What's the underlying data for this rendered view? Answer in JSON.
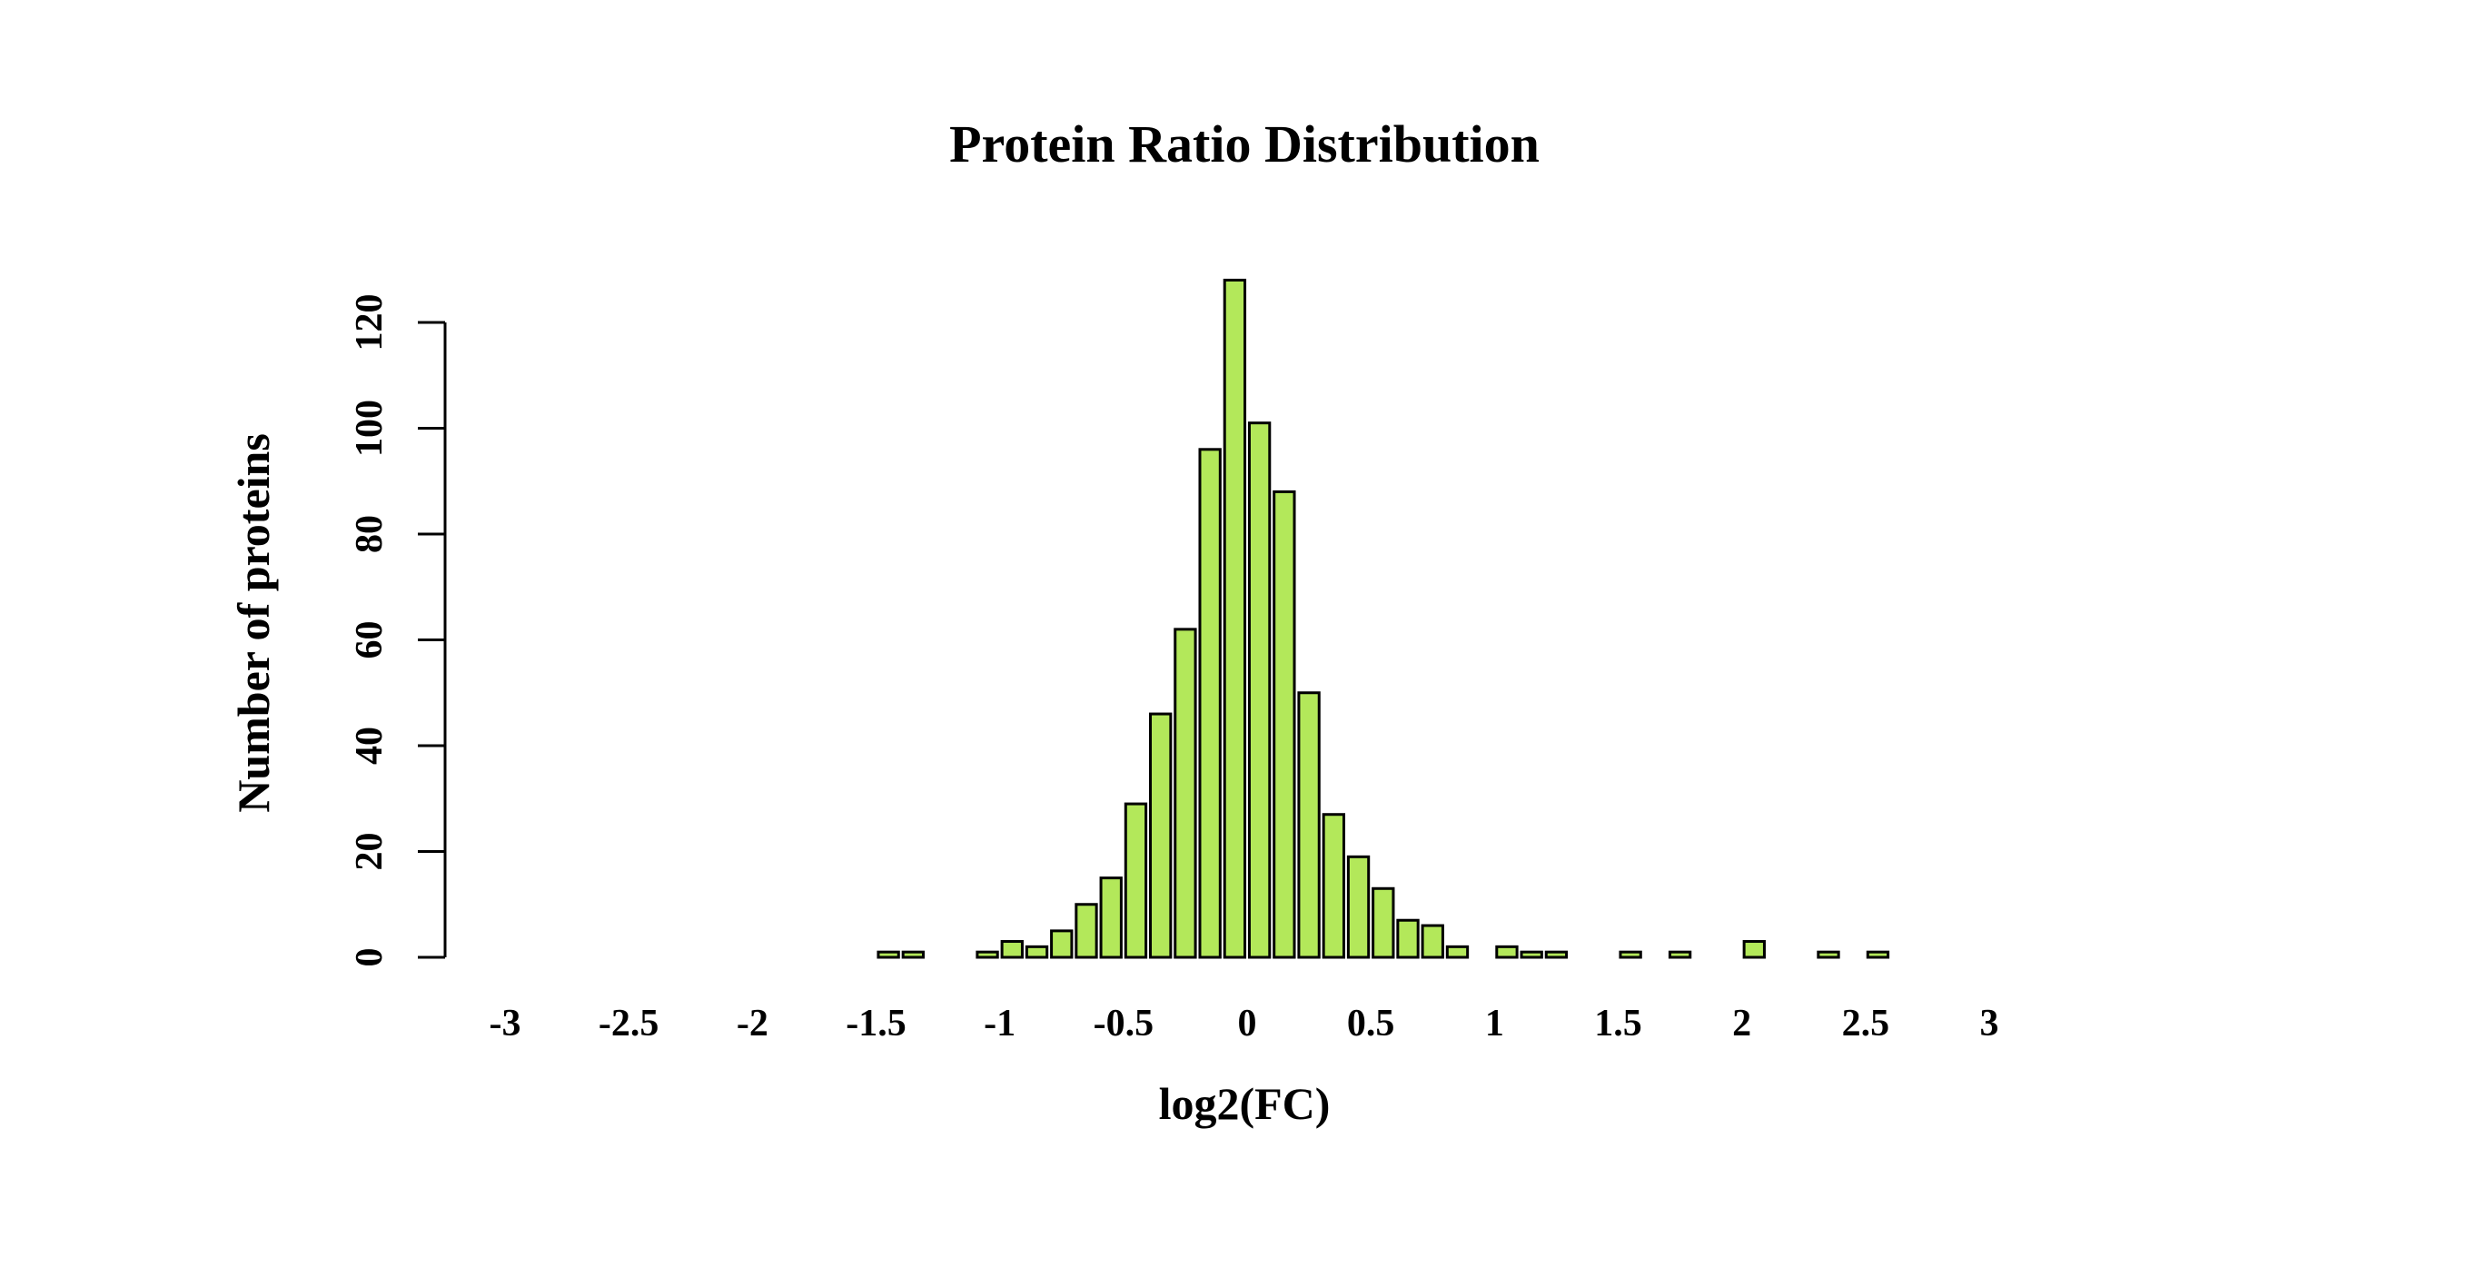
{
  "chart_data": {
    "type": "bar",
    "title": "Protein Ratio Distribution",
    "xlabel": "log2(FC)",
    "ylabel": "Number of proteins",
    "bar_color": "#B3E85A",
    "outline_color": "#000000",
    "xlim": [
      -3,
      3
    ],
    "ylim": [
      0,
      120
    ],
    "x_ticks": [
      -3,
      -2.5,
      -2,
      -1.5,
      -1,
      -0.5,
      0,
      0.5,
      1,
      1.5,
      2,
      2.5,
      3
    ],
    "x_tick_labels": [
      "-3",
      "-2.5",
      "-2",
      "-1.5",
      "-1",
      "-0.5",
      "0",
      "0.5",
      "1",
      "1.5",
      "2",
      "2.5",
      "3"
    ],
    "y_ticks": [
      0,
      20,
      40,
      60,
      80,
      100,
      120
    ],
    "y_tick_labels": [
      "0",
      "20",
      "40",
      "60",
      "80",
      "100",
      "120"
    ],
    "bin_width": 0.1,
    "categories": [
      -2.95,
      -2.85,
      -2.75,
      -2.65,
      -2.55,
      -2.45,
      -2.35,
      -2.25,
      -2.15,
      -2.05,
      -1.95,
      -1.85,
      -1.75,
      -1.65,
      -1.55,
      -1.45,
      -1.35,
      -1.25,
      -1.15,
      -1.05,
      -0.95,
      -0.85,
      -0.75,
      -0.65,
      -0.55,
      -0.45,
      -0.35,
      -0.25,
      -0.15,
      -0.05,
      0.05,
      0.15,
      0.25,
      0.35,
      0.45,
      0.55,
      0.65,
      0.75,
      0.85,
      0.95,
      1.05,
      1.15,
      1.25,
      1.35,
      1.45,
      1.55,
      1.65,
      1.75,
      1.85,
      1.95,
      2.05,
      2.15,
      2.25,
      2.35,
      2.45,
      2.55,
      2.65,
      2.75,
      2.85,
      2.95
    ],
    "values": [
      0,
      0,
      0,
      0,
      0,
      0,
      0,
      0,
      0,
      0,
      0,
      0,
      0,
      0,
      0,
      1,
      1,
      0,
      0,
      1,
      3,
      2,
      5,
      10,
      15,
      29,
      46,
      62,
      96,
      128,
      101,
      88,
      50,
      27,
      19,
      13,
      7,
      6,
      2,
      0,
      2,
      1,
      1,
      0,
      0,
      1,
      0,
      1,
      0,
      0,
      3,
      0,
      0,
      1,
      0,
      1,
      0,
      0,
      0,
      0
    ]
  }
}
